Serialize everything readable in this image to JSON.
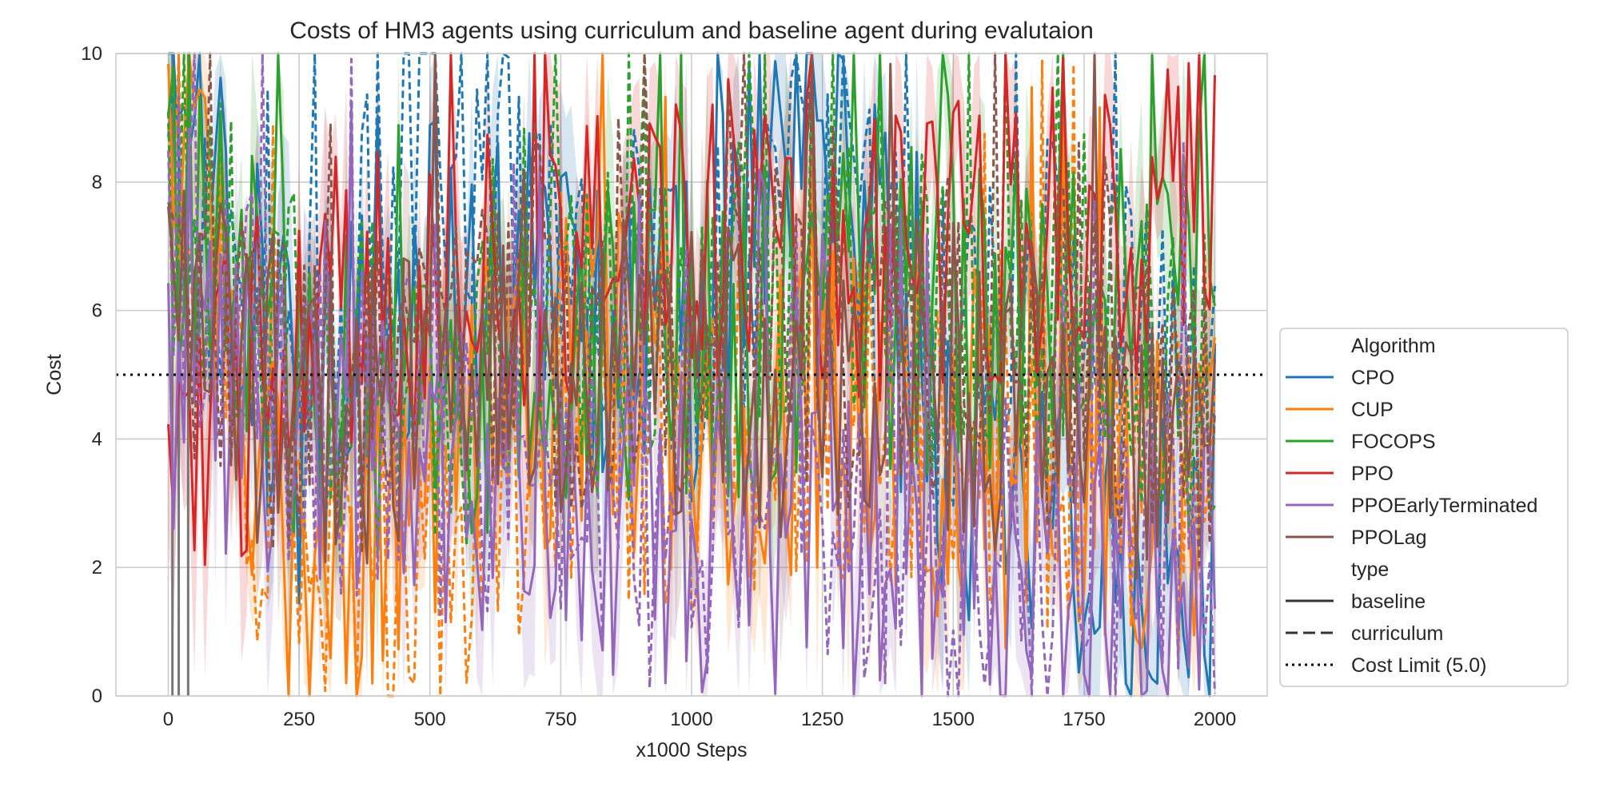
{
  "chart_data": {
    "type": "line",
    "title": "Costs of HM3 agents using curriculum and baseline agent during evalutaion",
    "xlabel": "x1000 Steps",
    "ylabel": "Cost",
    "xlim": [
      -100,
      2100
    ],
    "ylim": [
      0,
      10
    ],
    "xticks": [
      0,
      250,
      500,
      750,
      1000,
      1250,
      1500,
      1750,
      2000
    ],
    "yticks": [
      0,
      2,
      4,
      6,
      8,
      10
    ],
    "grid": true,
    "legend_position": "right",
    "cost_limit": 5.0,
    "legend": {
      "algorithm_title": "Algorithm",
      "type_title": "type",
      "cost_limit_label": "Cost Limit (5.0)",
      "types": [
        {
          "name": "baseline",
          "dash": "solid"
        },
        {
          "name": "curriculum",
          "dash": "dashed"
        }
      ]
    },
    "series": [
      {
        "name": "CPO",
        "color": "#1f77b4",
        "baseline": [
          [
            0,
            9.5
          ],
          [
            250,
            4.0
          ],
          [
            500,
            6.5
          ],
          [
            750,
            6.0
          ],
          [
            1000,
            5.5
          ],
          [
            1250,
            9.6
          ],
          [
            1500,
            3.0
          ],
          [
            1750,
            2.5
          ],
          [
            2000,
            1.3
          ]
        ],
        "curriculum": [
          [
            0,
            8.0
          ],
          [
            250,
            4.5
          ],
          [
            500,
            9.0
          ],
          [
            750,
            7.0
          ],
          [
            1000,
            6.0
          ],
          [
            1250,
            7.5
          ],
          [
            1500,
            5.0
          ],
          [
            1750,
            6.5
          ],
          [
            2000,
            4.0
          ]
        ]
      },
      {
        "name": "CUP",
        "color": "#ff7f0e",
        "baseline": [
          [
            0,
            9.0
          ],
          [
            250,
            1.5
          ],
          [
            500,
            3.0
          ],
          [
            750,
            5.0
          ],
          [
            1000,
            4.0
          ],
          [
            1250,
            4.5
          ],
          [
            1500,
            3.5
          ],
          [
            1750,
            3.0
          ],
          [
            2000,
            3.0
          ]
        ],
        "curriculum": [
          [
            0,
            8.0
          ],
          [
            250,
            1.0
          ],
          [
            500,
            2.0
          ],
          [
            750,
            4.0
          ],
          [
            1000,
            3.5
          ],
          [
            1250,
            4.5
          ],
          [
            1500,
            4.0
          ],
          [
            1750,
            3.5
          ],
          [
            2000,
            4.0
          ]
        ]
      },
      {
        "name": "FOCOPS",
        "color": "#2ca02c",
        "baseline": [
          [
            0,
            8.0
          ],
          [
            250,
            5.0
          ],
          [
            500,
            4.0
          ],
          [
            750,
            5.5
          ],
          [
            1000,
            5.5
          ],
          [
            1250,
            6.0
          ],
          [
            1500,
            6.0
          ],
          [
            1750,
            6.0
          ],
          [
            2000,
            6.3
          ]
        ],
        "curriculum": [
          [
            0,
            8.0
          ],
          [
            250,
            5.5
          ],
          [
            500,
            4.5
          ],
          [
            750,
            6.0
          ],
          [
            1000,
            6.0
          ],
          [
            1250,
            6.5
          ],
          [
            1500,
            6.0
          ],
          [
            1750,
            6.0
          ],
          [
            2000,
            5.0
          ]
        ]
      },
      {
        "name": "PPO",
        "color": "#d62728",
        "baseline": [
          [
            0,
            3.0
          ],
          [
            250,
            6.0
          ],
          [
            500,
            6.5
          ],
          [
            750,
            7.0
          ],
          [
            1000,
            7.0
          ],
          [
            1250,
            7.2
          ],
          [
            1500,
            7.0
          ],
          [
            1750,
            7.0
          ],
          [
            2000,
            7.5
          ]
        ],
        "curriculum": []
      },
      {
        "name": "PPOEarlyTerminated",
        "color": "#9467bd",
        "baseline": [
          [
            0,
            5.0
          ],
          [
            250,
            4.0
          ],
          [
            500,
            3.5
          ],
          [
            750,
            3.0
          ],
          [
            1000,
            2.5
          ],
          [
            1250,
            2.5
          ],
          [
            1500,
            2.0
          ],
          [
            1750,
            1.8
          ],
          [
            2000,
            2.0
          ]
        ],
        "curriculum": [
          [
            0,
            7.0
          ],
          [
            250,
            4.5
          ],
          [
            500,
            3.5
          ],
          [
            750,
            3.0
          ],
          [
            1000,
            2.5
          ],
          [
            1250,
            2.5
          ],
          [
            1500,
            2.5
          ],
          [
            1750,
            2.0
          ],
          [
            2000,
            2.5
          ]
        ]
      },
      {
        "name": "PPOLag",
        "color": "#8c564b",
        "baseline": [
          [
            0,
            6.0
          ],
          [
            250,
            4.5
          ],
          [
            500,
            4.5
          ],
          [
            750,
            5.0
          ],
          [
            1000,
            5.0
          ],
          [
            1250,
            5.0
          ],
          [
            1500,
            5.0
          ],
          [
            1750,
            4.5
          ],
          [
            2000,
            3.5
          ]
        ],
        "curriculum": [
          [
            0,
            6.0
          ],
          [
            250,
            4.5
          ],
          [
            500,
            5.0
          ],
          [
            750,
            5.0
          ],
          [
            1000,
            5.5
          ],
          [
            1250,
            5.5
          ],
          [
            1500,
            5.5
          ],
          [
            1750,
            5.0
          ],
          [
            2000,
            4.5
          ]
        ]
      }
    ]
  }
}
